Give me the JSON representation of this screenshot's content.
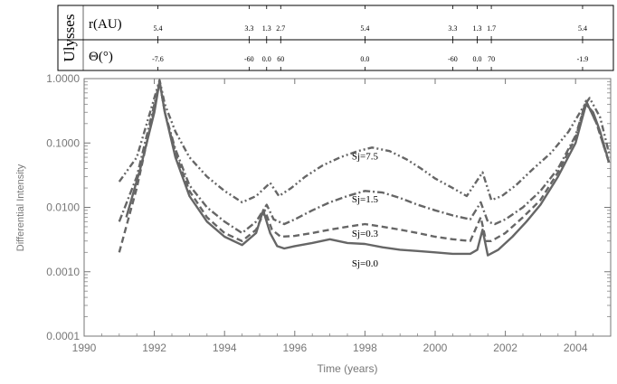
{
  "chart_data": {
    "type": "line",
    "header": {
      "spacecraft": "Ulysses",
      "rows": [
        {
          "label": "r(AU)",
          "ticks": [
            {
              "year": 1992.1,
              "text": "5.4"
            },
            {
              "year": 1994.7,
              "text": "3.3"
            },
            {
              "year": 1995.2,
              "text": "1.3"
            },
            {
              "year": 1995.6,
              "text": "2.7"
            },
            {
              "year": 1998.0,
              "text": "5.4"
            },
            {
              "year": 2000.5,
              "text": "3.3"
            },
            {
              "year": 2001.2,
              "text": "1.3"
            },
            {
              "year": 2001.6,
              "text": "1.7"
            },
            {
              "year": 2004.2,
              "text": "5.4"
            }
          ]
        },
        {
          "label": "Θ(°)",
          "ticks": [
            {
              "year": 1992.1,
              "text": "-7.6"
            },
            {
              "year": 1994.7,
              "text": "-60"
            },
            {
              "year": 1995.2,
              "text": "0.0"
            },
            {
              "year": 1995.6,
              "text": "60"
            },
            {
              "year": 1998.0,
              "text": "0.0"
            },
            {
              "year": 2000.5,
              "text": "-60"
            },
            {
              "year": 2001.2,
              "text": "0.0"
            },
            {
              "year": 2001.6,
              "text": "70"
            },
            {
              "year": 2004.2,
              "text": "-1.9"
            }
          ]
        }
      ]
    },
    "xlabel": "Time (years)",
    "ylabel": "Differential Intensity",
    "xlim": [
      1990,
      2005
    ],
    "ylim": [
      0.0001,
      1.0
    ],
    "yscale": "log",
    "xticks": [
      "1990",
      "1992",
      "1994",
      "1996",
      "1998",
      "2000",
      "2002",
      "2004"
    ],
    "yticks": [
      "0.0001",
      "0.0010",
      "0.0100",
      "0.1000",
      "1.0000"
    ],
    "series": [
      {
        "name": "Sj=0.0",
        "style": "solid",
        "label_year": 1998.0,
        "label_value": 0.0012,
        "x": [
          1991.2,
          1991.6,
          1992.0,
          1992.15,
          1992.3,
          1992.6,
          1993.0,
          1993.5,
          1994.0,
          1994.5,
          1994.9,
          1995.1,
          1995.3,
          1995.5,
          1995.7,
          1996.0,
          1996.5,
          1997.0,
          1997.5,
          1998.0,
          1998.5,
          1999.0,
          1999.5,
          2000.0,
          2000.5,
          2001.0,
          2001.2,
          2001.35,
          2001.5,
          2001.8,
          2002.2,
          2002.6,
          2003.0,
          2003.5,
          2004.0,
          2004.3,
          2004.5,
          2004.7,
          2004.95
        ],
        "values": [
          0.007,
          0.04,
          0.3,
          0.9,
          0.3,
          0.06,
          0.015,
          0.006,
          0.0035,
          0.0026,
          0.004,
          0.009,
          0.004,
          0.0025,
          0.0023,
          0.0025,
          0.0028,
          0.0032,
          0.0028,
          0.0027,
          0.0024,
          0.0022,
          0.0021,
          0.002,
          0.0019,
          0.0019,
          0.0022,
          0.0045,
          0.0018,
          0.0022,
          0.0035,
          0.006,
          0.011,
          0.03,
          0.1,
          0.4,
          0.3,
          0.15,
          0.05
        ]
      },
      {
        "name": "Sj=0.3",
        "style": "dashed",
        "label_year": 1998.0,
        "label_value": 0.0035,
        "x": [
          1991.0,
          1991.5,
          1992.0,
          1992.15,
          1992.3,
          1992.6,
          1993.0,
          1993.5,
          1994.0,
          1994.5,
          1994.9,
          1995.15,
          1995.35,
          1995.6,
          1996.0,
          1996.5,
          1997.0,
          1997.5,
          1998.0,
          1998.5,
          1999.0,
          1999.5,
          2000.0,
          2000.5,
          2001.0,
          2001.3,
          2001.45,
          2001.6,
          2002.0,
          2002.5,
          2003.0,
          2003.5,
          2004.0,
          2004.3,
          2004.6,
          2004.95
        ],
        "values": [
          0.002,
          0.02,
          0.35,
          0.9,
          0.3,
          0.07,
          0.018,
          0.007,
          0.004,
          0.003,
          0.0045,
          0.009,
          0.0045,
          0.0035,
          0.0036,
          0.004,
          0.0045,
          0.005,
          0.0055,
          0.005,
          0.0045,
          0.004,
          0.0035,
          0.0032,
          0.003,
          0.007,
          0.003,
          0.003,
          0.004,
          0.007,
          0.013,
          0.035,
          0.12,
          0.45,
          0.2,
          0.05
        ]
      },
      {
        "name": "Sj=1.5",
        "style": "dashdot",
        "label_year": 1998.0,
        "label_value": 0.012,
        "x": [
          1991.0,
          1991.5,
          1992.0,
          1992.15,
          1992.3,
          1992.6,
          1993.0,
          1993.5,
          1994.0,
          1994.5,
          1994.9,
          1995.2,
          1995.4,
          1995.7,
          1996.0,
          1996.5,
          1997.0,
          1997.5,
          1998.0,
          1998.5,
          1999.0,
          1999.5,
          2000.0,
          2000.5,
          2001.0,
          2001.3,
          2001.5,
          2001.7,
          2002.0,
          2002.5,
          2003.0,
          2003.5,
          2004.0,
          2004.3,
          2004.6,
          2004.95
        ],
        "values": [
          0.006,
          0.03,
          0.4,
          0.9,
          0.3,
          0.08,
          0.022,
          0.01,
          0.006,
          0.004,
          0.006,
          0.011,
          0.0065,
          0.0055,
          0.0065,
          0.009,
          0.012,
          0.015,
          0.018,
          0.017,
          0.014,
          0.011,
          0.009,
          0.0075,
          0.0065,
          0.012,
          0.006,
          0.0055,
          0.0065,
          0.01,
          0.018,
          0.04,
          0.13,
          0.45,
          0.2,
          0.05
        ]
      },
      {
        "name": "Sj=7.5",
        "style": "dashdotdot",
        "label_year": 1998.0,
        "label_value": 0.055,
        "x": [
          1991.0,
          1991.5,
          1992.0,
          1992.15,
          1992.3,
          1992.6,
          1993.0,
          1993.5,
          1994.0,
          1994.5,
          1994.9,
          1995.3,
          1995.55,
          1995.9,
          1996.3,
          1996.8,
          1997.3,
          1997.8,
          1998.2,
          1998.7,
          1999.2,
          1999.6,
          2000.0,
          2000.5,
          2000.9,
          2001.35,
          2001.6,
          2001.9,
          2002.3,
          2002.8,
          2003.3,
          2003.8,
          2004.2,
          2004.4,
          2004.7,
          2004.95
        ],
        "values": [
          0.025,
          0.06,
          0.5,
          0.95,
          0.4,
          0.15,
          0.06,
          0.03,
          0.018,
          0.012,
          0.015,
          0.024,
          0.015,
          0.02,
          0.03,
          0.045,
          0.06,
          0.075,
          0.085,
          0.075,
          0.055,
          0.04,
          0.028,
          0.02,
          0.015,
          0.035,
          0.013,
          0.015,
          0.022,
          0.04,
          0.07,
          0.15,
          0.35,
          0.5,
          0.25,
          0.07
        ]
      }
    ]
  }
}
